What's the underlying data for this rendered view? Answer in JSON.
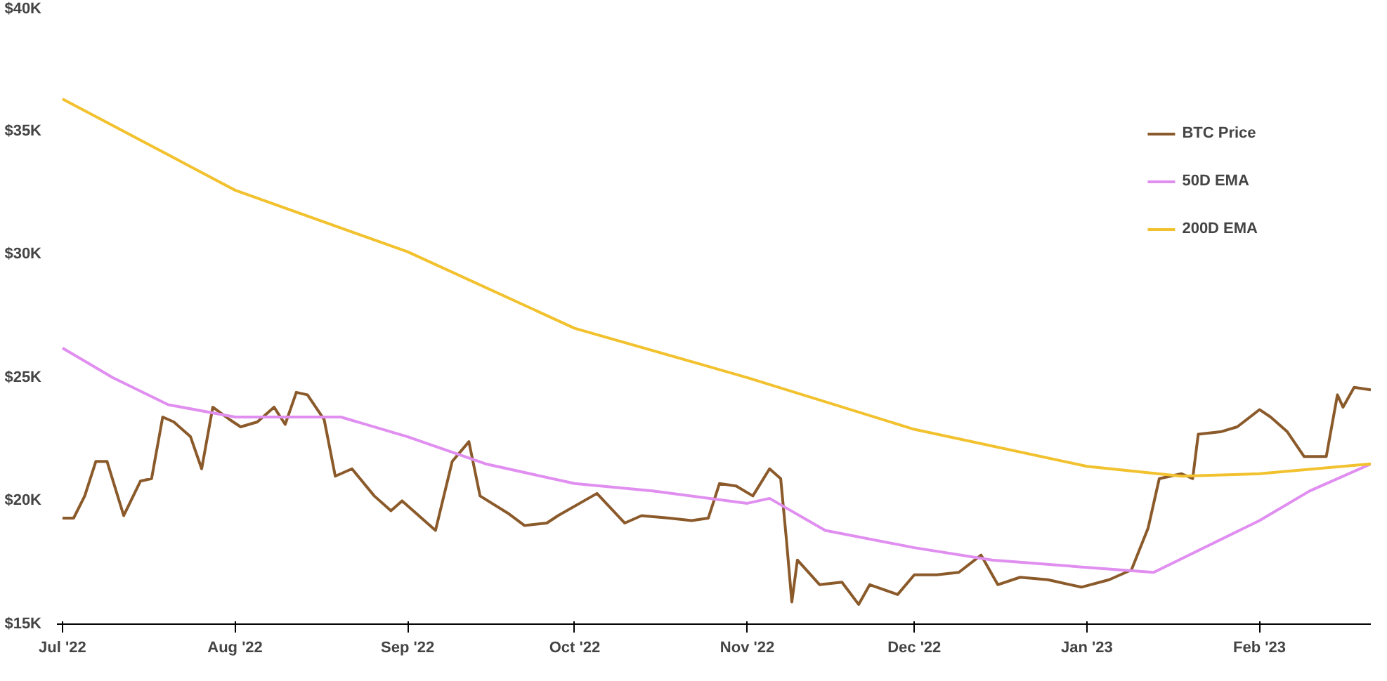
{
  "chart_data": {
    "type": "line",
    "ylim": [
      15,
      40
    ],
    "yticks": [
      {
        "value": 15,
        "label": "$15K"
      },
      {
        "value": 20,
        "label": "$20K"
      },
      {
        "value": 25,
        "label": "$25K"
      },
      {
        "value": 30,
        "label": "$30K"
      },
      {
        "value": 35,
        "label": "$35K"
      },
      {
        "value": 40,
        "label": "$40K"
      }
    ],
    "xlim": [
      "2022-06-30",
      "2023-02-21"
    ],
    "xticks": [
      {
        "value": "2022-07-01",
        "label": "Jul '22"
      },
      {
        "value": "2022-08-01",
        "label": "Aug '22"
      },
      {
        "value": "2022-09-01",
        "label": "Sep '22"
      },
      {
        "value": "2022-10-01",
        "label": "Oct '22"
      },
      {
        "value": "2022-11-01",
        "label": "Nov '22"
      },
      {
        "value": "2022-12-01",
        "label": "Dec '22"
      },
      {
        "value": "2023-01-01",
        "label": "Jan '23"
      },
      {
        "value": "2023-02-01",
        "label": "Feb '23"
      }
    ],
    "grid": false,
    "legend": "top right",
    "marker": "none",
    "line_style": "solid",
    "series": [
      {
        "name": "BTC Price",
        "color": "#8b5a2b",
        "x": [
          "2022-07-01",
          "2022-07-03",
          "2022-07-05",
          "2022-07-07",
          "2022-07-09",
          "2022-07-12",
          "2022-07-15",
          "2022-07-17",
          "2022-07-19",
          "2022-07-21",
          "2022-07-24",
          "2022-07-26",
          "2022-07-28",
          "2022-07-31",
          "2022-08-02",
          "2022-08-05",
          "2022-08-08",
          "2022-08-10",
          "2022-08-12",
          "2022-08-14",
          "2022-08-17",
          "2022-08-19",
          "2022-08-22",
          "2022-08-26",
          "2022-08-29",
          "2022-08-31",
          "2022-09-06",
          "2022-09-09",
          "2022-09-12",
          "2022-09-14",
          "2022-09-19",
          "2022-09-22",
          "2022-09-26",
          "2022-09-28",
          "2022-10-05",
          "2022-10-10",
          "2022-10-13",
          "2022-10-18",
          "2022-10-22",
          "2022-10-25",
          "2022-10-27",
          "2022-10-30",
          "2022-11-02",
          "2022-11-05",
          "2022-11-07",
          "2022-11-08",
          "2022-11-09",
          "2022-11-10",
          "2022-11-14",
          "2022-11-18",
          "2022-11-21",
          "2022-11-23",
          "2022-11-28",
          "2022-12-01",
          "2022-12-05",
          "2022-12-09",
          "2022-12-13",
          "2022-12-16",
          "2022-12-20",
          "2022-12-25",
          "2022-12-31",
          "2023-01-05",
          "2023-01-09",
          "2023-01-12",
          "2023-01-14",
          "2023-01-18",
          "2023-01-20",
          "2023-01-21",
          "2023-01-25",
          "2023-01-28",
          "2023-02-01",
          "2023-02-03",
          "2023-02-06",
          "2023-02-09",
          "2023-02-13",
          "2023-02-15",
          "2023-02-16",
          "2023-02-18",
          "2023-02-21"
        ],
        "values": [
          19.3,
          19.3,
          20.2,
          21.6,
          21.6,
          19.4,
          20.8,
          20.9,
          23.4,
          23.2,
          22.6,
          21.3,
          23.8,
          23.3,
          23.0,
          23.2,
          23.8,
          23.1,
          24.4,
          24.3,
          23.3,
          21.0,
          21.3,
          20.2,
          19.6,
          20.0,
          18.8,
          21.6,
          22.4,
          20.2,
          19.5,
          19.0,
          19.1,
          19.4,
          20.3,
          19.1,
          19.4,
          19.3,
          19.2,
          19.3,
          20.7,
          20.6,
          20.2,
          21.3,
          20.9,
          18.5,
          15.9,
          17.6,
          16.6,
          16.7,
          15.8,
          16.6,
          16.2,
          17.0,
          17.0,
          17.1,
          17.8,
          16.6,
          16.9,
          16.8,
          16.5,
          16.8,
          17.2,
          18.9,
          20.9,
          21.1,
          20.9,
          22.7,
          22.8,
          23.0,
          23.7,
          23.4,
          22.8,
          21.8,
          21.8,
          24.3,
          23.8,
          24.6,
          24.5
        ]
      },
      {
        "name": "50D EMA",
        "color": "#e08ef0",
        "x": [
          "2022-07-01",
          "2022-07-10",
          "2022-07-20",
          "2022-08-01",
          "2022-08-20",
          "2022-09-01",
          "2022-09-15",
          "2022-10-01",
          "2022-10-15",
          "2022-11-01",
          "2022-11-05",
          "2022-11-15",
          "2022-12-01",
          "2022-12-15",
          "2023-01-01",
          "2023-01-13",
          "2023-02-01",
          "2023-02-10",
          "2023-02-21"
        ],
        "values": [
          26.2,
          25.0,
          23.9,
          23.4,
          23.4,
          22.6,
          21.5,
          20.7,
          20.4,
          19.9,
          20.1,
          18.8,
          18.1,
          17.6,
          17.3,
          17.1,
          19.2,
          20.4,
          21.5
        ]
      },
      {
        "name": "200D EMA",
        "color": "#f2c12e",
        "x": [
          "2022-07-01",
          "2022-08-01",
          "2022-09-01",
          "2022-10-01",
          "2022-11-01",
          "2022-12-01",
          "2023-01-01",
          "2023-01-18",
          "2023-02-01",
          "2023-02-21"
        ],
        "values": [
          36.3,
          32.6,
          30.1,
          27.0,
          25.0,
          22.9,
          21.4,
          21.0,
          21.1,
          21.5
        ]
      }
    ]
  }
}
